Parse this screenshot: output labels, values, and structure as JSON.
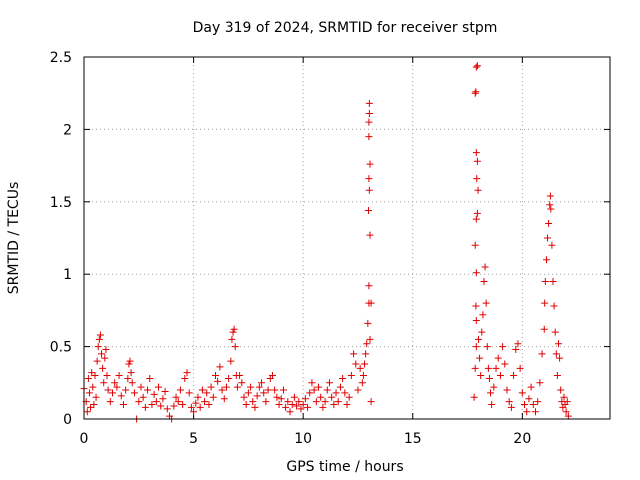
{
  "chart_data": {
    "type": "scatter",
    "title": "Day 319 of 2024, SRMTID for receiver stpm",
    "xlabel": "GPS time / hours",
    "ylabel": "SRMTID / TECUs",
    "xlim": [
      0,
      24
    ],
    "ylim": [
      0,
      2.5
    ],
    "xticks": [
      0,
      5,
      10,
      15,
      20
    ],
    "yticks": [
      0,
      0.5,
      1,
      1.5,
      2,
      2.5
    ],
    "xtick_labels": [
      "0",
      "5",
      "10",
      "15",
      "20"
    ],
    "ytick_labels": [
      "0",
      "0.5",
      "1",
      "1.5",
      "2",
      "2.5"
    ],
    "grid": true,
    "marker": "+",
    "color": "#e00000",
    "series": [
      {
        "name": "SRMTID",
        "points": [
          [
            0.0,
            0.21
          ],
          [
            0.1,
            0.12
          ],
          [
            0.15,
            0.05
          ],
          [
            0.2,
            0.28
          ],
          [
            0.25,
            0.18
          ],
          [
            0.3,
            0.08
          ],
          [
            0.35,
            0.32
          ],
          [
            0.4,
            0.22
          ],
          [
            0.45,
            0.1
          ],
          [
            0.5,
            0.3
          ],
          [
            0.55,
            0.15
          ],
          [
            0.6,
            0.4
          ],
          [
            0.65,
            0.5
          ],
          [
            0.7,
            0.55
          ],
          [
            0.75,
            0.58
          ],
          [
            0.8,
            0.45
          ],
          [
            0.85,
            0.35
          ],
          [
            0.9,
            0.25
          ],
          [
            0.95,
            0.42
          ],
          [
            1.0,
            0.48
          ],
          [
            1.05,
            0.3
          ],
          [
            1.1,
            0.2
          ],
          [
            1.2,
            0.12
          ],
          [
            1.3,
            0.18
          ],
          [
            1.4,
            0.25
          ],
          [
            1.5,
            0.22
          ],
          [
            1.6,
            0.3
          ],
          [
            1.7,
            0.16
          ],
          [
            1.8,
            0.1
          ],
          [
            1.9,
            0.2
          ],
          [
            2.0,
            0.28
          ],
          [
            2.05,
            0.38
          ],
          [
            2.1,
            0.4
          ],
          [
            2.15,
            0.32
          ],
          [
            2.2,
            0.25
          ],
          [
            2.3,
            0.18
          ],
          [
            2.4,
            0.0
          ],
          [
            2.5,
            0.12
          ],
          [
            2.6,
            0.22
          ],
          [
            2.7,
            0.15
          ],
          [
            2.8,
            0.08
          ],
          [
            2.9,
            0.2
          ],
          [
            3.0,
            0.28
          ],
          [
            3.1,
            0.1
          ],
          [
            3.2,
            0.17
          ],
          [
            3.3,
            0.12
          ],
          [
            3.4,
            0.22
          ],
          [
            3.5,
            0.09
          ],
          [
            3.6,
            0.14
          ],
          [
            3.7,
            0.19
          ],
          [
            3.8,
            0.07
          ],
          [
            3.9,
            0.02
          ],
          [
            4.0,
            0.0
          ],
          [
            4.1,
            0.09
          ],
          [
            4.2,
            0.15
          ],
          [
            4.3,
            0.12
          ],
          [
            4.4,
            0.2
          ],
          [
            4.5,
            0.1
          ],
          [
            4.6,
            0.28
          ],
          [
            4.7,
            0.32
          ],
          [
            4.8,
            0.18
          ],
          [
            4.9,
            0.08
          ],
          [
            5.0,
            0.05
          ],
          [
            5.1,
            0.11
          ],
          [
            5.2,
            0.15
          ],
          [
            5.3,
            0.08
          ],
          [
            5.4,
            0.2
          ],
          [
            5.5,
            0.12
          ],
          [
            5.6,
            0.18
          ],
          [
            5.7,
            0.1
          ],
          [
            5.8,
            0.22
          ],
          [
            5.9,
            0.15
          ],
          [
            6.0,
            0.3
          ],
          [
            6.1,
            0.26
          ],
          [
            6.2,
            0.36
          ],
          [
            6.3,
            0.2
          ],
          [
            6.4,
            0.14
          ],
          [
            6.5,
            0.22
          ],
          [
            6.6,
            0.28
          ],
          [
            6.7,
            0.4
          ],
          [
            6.75,
            0.55
          ],
          [
            6.8,
            0.6
          ],
          [
            6.85,
            0.62
          ],
          [
            6.9,
            0.5
          ],
          [
            6.95,
            0.3
          ],
          [
            7.0,
            0.22
          ],
          [
            7.1,
            0.3
          ],
          [
            7.2,
            0.25
          ],
          [
            7.3,
            0.15
          ],
          [
            7.4,
            0.1
          ],
          [
            7.5,
            0.18
          ],
          [
            7.6,
            0.22
          ],
          [
            7.7,
            0.12
          ],
          [
            7.8,
            0.08
          ],
          [
            7.9,
            0.16
          ],
          [
            8.0,
            0.22
          ],
          [
            8.1,
            0.25
          ],
          [
            8.2,
            0.18
          ],
          [
            8.3,
            0.12
          ],
          [
            8.4,
            0.2
          ],
          [
            8.5,
            0.28
          ],
          [
            8.6,
            0.3
          ],
          [
            8.7,
            0.2
          ],
          [
            8.8,
            0.15
          ],
          [
            8.9,
            0.1
          ],
          [
            9.0,
            0.14
          ],
          [
            9.1,
            0.2
          ],
          [
            9.2,
            0.08
          ],
          [
            9.3,
            0.12
          ],
          [
            9.4,
            0.05
          ],
          [
            9.5,
            0.1
          ],
          [
            9.6,
            0.15
          ],
          [
            9.7,
            0.09
          ],
          [
            9.8,
            0.12
          ],
          [
            9.9,
            0.07
          ],
          [
            10.0,
            0.1
          ],
          [
            10.1,
            0.14
          ],
          [
            10.2,
            0.08
          ],
          [
            10.3,
            0.18
          ],
          [
            10.4,
            0.25
          ],
          [
            10.5,
            0.2
          ],
          [
            10.6,
            0.12
          ],
          [
            10.7,
            0.22
          ],
          [
            10.8,
            0.15
          ],
          [
            10.9,
            0.08
          ],
          [
            11.0,
            0.12
          ],
          [
            11.1,
            0.2
          ],
          [
            11.2,
            0.25
          ],
          [
            11.3,
            0.15
          ],
          [
            11.4,
            0.1
          ],
          [
            11.5,
            0.18
          ],
          [
            11.6,
            0.12
          ],
          [
            11.7,
            0.22
          ],
          [
            11.8,
            0.28
          ],
          [
            11.9,
            0.18
          ],
          [
            12.0,
            0.1
          ],
          [
            12.1,
            0.15
          ],
          [
            12.2,
            0.3
          ],
          [
            12.3,
            0.45
          ],
          [
            12.4,
            0.38
          ],
          [
            12.5,
            0.2
          ],
          [
            12.6,
            0.35
          ],
          [
            12.7,
            0.25
          ],
          [
            12.75,
            0.3
          ],
          [
            12.8,
            0.38
          ],
          [
            12.85,
            0.45
          ],
          [
            12.9,
            0.52
          ],
          [
            12.95,
            0.66
          ],
          [
            13.0,
            0.92
          ],
          [
            13.0,
            0.8
          ],
          [
            12.98,
            1.44
          ],
          [
            13.0,
            1.66
          ],
          [
            13.02,
            1.58
          ],
          [
            13.05,
            1.76
          ],
          [
            13.05,
            1.27
          ],
          [
            13.0,
            2.05
          ],
          [
            13.0,
            1.95
          ],
          [
            13.02,
            2.11
          ],
          [
            13.02,
            2.18
          ],
          [
            13.1,
            0.8
          ],
          [
            13.05,
            0.55
          ],
          [
            13.1,
            0.12
          ],
          [
            17.8,
            0.15
          ],
          [
            17.85,
            0.35
          ],
          [
            17.9,
            0.5
          ],
          [
            17.9,
            0.68
          ],
          [
            17.88,
            0.78
          ],
          [
            17.9,
            1.01
          ],
          [
            17.85,
            1.2
          ],
          [
            17.9,
            1.38
          ],
          [
            17.95,
            1.42
          ],
          [
            17.92,
            1.66
          ],
          [
            17.98,
            1.58
          ],
          [
            17.95,
            1.78
          ],
          [
            17.9,
            1.84
          ],
          [
            17.85,
            2.25
          ],
          [
            17.88,
            2.26
          ],
          [
            17.9,
            2.43
          ],
          [
            17.95,
            2.44
          ],
          [
            18.0,
            0.55
          ],
          [
            18.05,
            0.42
          ],
          [
            18.1,
            0.3
          ],
          [
            18.15,
            0.6
          ],
          [
            18.2,
            0.72
          ],
          [
            18.25,
            0.95
          ],
          [
            18.3,
            1.05
          ],
          [
            18.35,
            0.8
          ],
          [
            18.4,
            0.5
          ],
          [
            18.45,
            0.35
          ],
          [
            18.5,
            0.28
          ],
          [
            18.55,
            0.18
          ],
          [
            18.6,
            0.1
          ],
          [
            18.7,
            0.22
          ],
          [
            18.8,
            0.35
          ],
          [
            18.9,
            0.42
          ],
          [
            19.0,
            0.3
          ],
          [
            19.1,
            0.5
          ],
          [
            19.2,
            0.38
          ],
          [
            19.3,
            0.2
          ],
          [
            19.4,
            0.12
          ],
          [
            19.5,
            0.08
          ],
          [
            19.6,
            0.3
          ],
          [
            19.7,
            0.48
          ],
          [
            19.8,
            0.52
          ],
          [
            19.9,
            0.35
          ],
          [
            20.0,
            0.18
          ],
          [
            20.1,
            0.1
          ],
          [
            20.2,
            0.05
          ],
          [
            20.3,
            0.14
          ],
          [
            20.4,
            0.22
          ],
          [
            20.5,
            0.1
          ],
          [
            20.6,
            0.05
          ],
          [
            20.7,
            0.12
          ],
          [
            20.8,
            0.25
          ],
          [
            20.9,
            0.45
          ],
          [
            21.0,
            0.62
          ],
          [
            21.02,
            0.8
          ],
          [
            21.05,
            0.95
          ],
          [
            21.1,
            1.1
          ],
          [
            21.15,
            1.25
          ],
          [
            21.2,
            1.35
          ],
          [
            21.25,
            1.48
          ],
          [
            21.28,
            1.54
          ],
          [
            21.3,
            1.45
          ],
          [
            21.35,
            1.2
          ],
          [
            21.4,
            0.95
          ],
          [
            21.45,
            0.78
          ],
          [
            21.5,
            0.6
          ],
          [
            21.55,
            0.45
          ],
          [
            21.6,
            0.3
          ],
          [
            21.65,
            0.52
          ],
          [
            21.7,
            0.42
          ],
          [
            21.75,
            0.2
          ],
          [
            21.8,
            0.12
          ],
          [
            21.85,
            0.08
          ],
          [
            21.9,
            0.15
          ],
          [
            21.95,
            0.1
          ],
          [
            22.0,
            0.05
          ],
          [
            22.05,
            0.12
          ],
          [
            22.1,
            0.02
          ]
        ]
      }
    ]
  }
}
